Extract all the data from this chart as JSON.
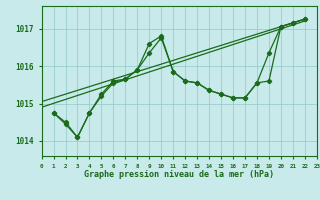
{
  "title": "Graphe pression niveau de la mer (hPa)",
  "background_color": "#c8eaea",
  "grid_color": "#90c8c8",
  "line_color": "#1a6b1a",
  "xlim": [
    0,
    23
  ],
  "ylim": [
    1013.6,
    1017.6
  ],
  "yticks": [
    1014,
    1015,
    1016,
    1017
  ],
  "xticks": [
    0,
    1,
    2,
    3,
    4,
    5,
    6,
    7,
    8,
    9,
    10,
    11,
    12,
    13,
    14,
    15,
    16,
    17,
    18,
    19,
    20,
    21,
    22,
    23
  ],
  "series": [
    {
      "x": [
        0,
        22
      ],
      "y": [
        1014.9,
        1017.2
      ]
    },
    {
      "x": [
        0,
        22
      ],
      "y": [
        1015.05,
        1017.25
      ]
    },
    {
      "x": [
        1,
        2,
        3,
        4,
        5,
        6,
        7,
        8,
        9,
        10,
        11,
        12,
        13,
        14,
        15,
        16,
        17,
        18,
        19,
        20,
        21,
        22
      ],
      "y": [
        1014.75,
        1014.45,
        1014.1,
        1014.75,
        1015.2,
        1015.55,
        1015.65,
        1015.9,
        1016.35,
        1016.75,
        1015.85,
        1015.6,
        1015.55,
        1015.35,
        1015.25,
        1015.15,
        1015.15,
        1015.55,
        1016.35,
        1017.05,
        1017.15,
        1017.25
      ]
    },
    {
      "x": [
        1,
        2,
        3,
        4,
        5,
        6,
        7,
        8,
        9,
        10,
        11,
        12,
        13,
        14,
        15,
        16,
        17,
        18,
        19,
        20,
        21,
        22
      ],
      "y": [
        1014.75,
        1014.5,
        1014.1,
        1014.75,
        1015.25,
        1015.6,
        1015.65,
        1015.9,
        1016.6,
        1016.8,
        1015.85,
        1015.6,
        1015.55,
        1015.35,
        1015.25,
        1015.15,
        1015.15,
        1015.55,
        1015.6,
        1017.05,
        1017.15,
        1017.25
      ]
    }
  ]
}
